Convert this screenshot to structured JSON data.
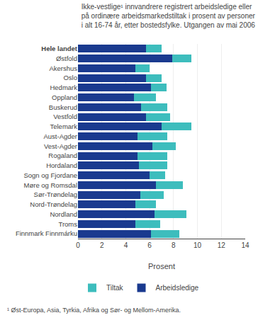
{
  "chart_data": {
    "type": "bar",
    "orientation": "horizontal",
    "stacked": true,
    "title": "Ikke-vestlige¹ innvandrere registrert arbeidsledige eller\npå ordinære arbeidsmarkedstiltak i prosent av personer\ni alt 16-74 år, etter bostedsfylke. Utgangen av mai 2006",
    "xlabel": "Prosent",
    "annotations": [
      "¹ Øst-Europa, Asia, Tyrkia, Afrika og Sør- og Mellom-Amerika."
    ],
    "categories": [
      "Hele landet",
      "Østfold",
      "Akershus",
      "Oslo",
      "Hedmark",
      "Oppland",
      "Buskerud",
      "Vestfold",
      "Telemark",
      "Aust-Agder",
      "Vest-Agder",
      "Rogaland",
      "Hordaland",
      "Sogn og Fjordane",
      "Møre og Romsdal",
      "Sør-Trøndelag",
      "Nord-Trøndelag",
      "Nordland",
      "Troms",
      "Finnmark Finnmárku"
    ],
    "series": [
      {
        "name": "Arbeidsledige",
        "color": "#1a3a8f",
        "values": [
          5.7,
          7.9,
          4.8,
          5.7,
          6.1,
          4.7,
          5.3,
          5.7,
          7.0,
          5.0,
          6.2,
          5.0,
          5.1,
          6.0,
          6.5,
          5.2,
          4.8,
          6.4,
          4.8,
          6.1
        ]
      },
      {
        "name": "Tiltak",
        "color": "#3dbdbd",
        "values": [
          1.3,
          1.6,
          1.2,
          1.3,
          1.3,
          1.8,
          2.2,
          2.0,
          2.5,
          2.5,
          2.0,
          2.5,
          2.4,
          1.3,
          2.3,
          2.0,
          1.7,
          2.7,
          2.1,
          2.4
        ]
      }
    ],
    "xlim": [
      0,
      14
    ],
    "xticks": [
      0,
      2,
      4,
      6,
      8,
      10,
      12,
      14
    ],
    "grid": true,
    "legend": "bottom"
  }
}
